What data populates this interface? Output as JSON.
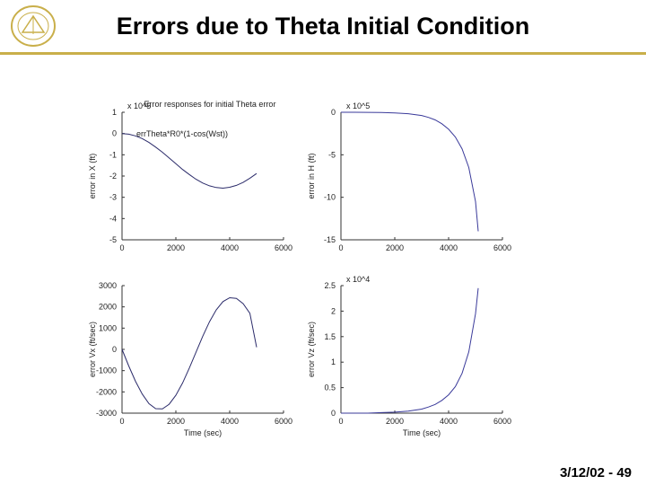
{
  "slide": {
    "title": "Errors due to Theta Initial Condition",
    "footer": "3/12/02 - 49",
    "accent_color": "#C9AF4A",
    "logo_icon": "university-seal-icon"
  },
  "chart_data": [
    {
      "type": "line",
      "title": "Error responses for initial Theta error",
      "annotation": "errTheta*R0*(1-cos(Wst))",
      "xlabel": "",
      "ylabel": "error in X (ft)",
      "multiplier": "x 10^5",
      "xlim": [
        0,
        6000
      ],
      "ylim": [
        -5,
        1
      ],
      "xticks": [
        "0",
        "2000",
        "4000",
        "6000"
      ],
      "yticks": [
        "1",
        "0",
        "-1",
        "-2",
        "-3",
        "-4",
        "-5"
      ],
      "series": [
        {
          "color": "#2b2b6a",
          "x": [
            0,
            250,
            500,
            750,
            1000,
            1250,
            1500,
            1750,
            2000,
            2250,
            2500,
            2750,
            3000,
            3250,
            3500,
            3750,
            4000,
            4250,
            4500,
            4750,
            5000
          ],
          "y": [
            0,
            -0.03,
            -0.11,
            -0.24,
            -0.42,
            -0.64,
            -0.88,
            -1.15,
            -1.42,
            -1.69,
            -1.93,
            -2.15,
            -2.33,
            -2.46,
            -2.54,
            -2.57,
            -2.53,
            -2.44,
            -2.3,
            -2.1,
            -1.88
          ]
        }
      ]
    },
    {
      "type": "line",
      "title": "",
      "xlabel": "",
      "ylabel": "error in H (ft)",
      "multiplier": "x 10^5",
      "xlim": [
        0,
        6000
      ],
      "ylim": [
        -15,
        0
      ],
      "xticks": [
        "0",
        "2000",
        "4000",
        "6000"
      ],
      "yticks": [
        "0",
        "-5",
        "-10",
        "-15"
      ],
      "series": [
        {
          "color": "#3a3a9a",
          "x": [
            0,
            500,
            1000,
            1500,
            2000,
            2500,
            3000,
            3250,
            3500,
            3750,
            4000,
            4250,
            4500,
            4750,
            5000,
            5100
          ],
          "y": [
            0,
            0,
            -0.01,
            -0.03,
            -0.07,
            -0.17,
            -0.38,
            -0.6,
            -0.9,
            -1.35,
            -2.0,
            -2.9,
            -4.3,
            -6.5,
            -10.5,
            -14.0
          ]
        }
      ]
    },
    {
      "type": "line",
      "title": "",
      "xlabel": "Time (sec)",
      "ylabel": "error Vx (ft/sec)",
      "multiplier": "",
      "xlim": [
        0,
        6000
      ],
      "ylim": [
        -3000,
        3000
      ],
      "xticks": [
        "0",
        "2000",
        "4000",
        "6000"
      ],
      "yticks": [
        "3000",
        "2000",
        "1000",
        "0",
        "-1000",
        "-2000",
        "-3000"
      ],
      "series": [
        {
          "color": "#2b2b6a",
          "x": [
            0,
            250,
            500,
            750,
            1000,
            1250,
            1500,
            1750,
            2000,
            2250,
            2500,
            2750,
            3000,
            3250,
            3500,
            3750,
            4000,
            4250,
            4500,
            4750,
            5000
          ],
          "y": [
            0,
            -780,
            -1500,
            -2100,
            -2550,
            -2790,
            -2800,
            -2580,
            -2160,
            -1580,
            -880,
            -130,
            620,
            1300,
            1860,
            2250,
            2430,
            2400,
            2150,
            1700,
            100
          ]
        }
      ]
    },
    {
      "type": "line",
      "title": "",
      "xlabel": "Time (sec)",
      "ylabel": "error Vz (ft/sec)",
      "multiplier": "x 10^4",
      "xlim": [
        0,
        6000
      ],
      "ylim": [
        0,
        2.5
      ],
      "xticks": [
        "0",
        "2000",
        "4000",
        "6000"
      ],
      "yticks": [
        "2.5",
        "2",
        "1.5",
        "1",
        "0.5",
        "0"
      ],
      "series": [
        {
          "color": "#3a3a9a",
          "x": [
            0,
            500,
            1000,
            1500,
            2000,
            2500,
            3000,
            3250,
            3500,
            3750,
            4000,
            4250,
            4500,
            4750,
            5000,
            5100
          ],
          "y": [
            0,
            0,
            0,
            0.01,
            0.02,
            0.04,
            0.08,
            0.12,
            0.17,
            0.25,
            0.36,
            0.52,
            0.78,
            1.2,
            1.95,
            2.45
          ]
        }
      ]
    }
  ]
}
